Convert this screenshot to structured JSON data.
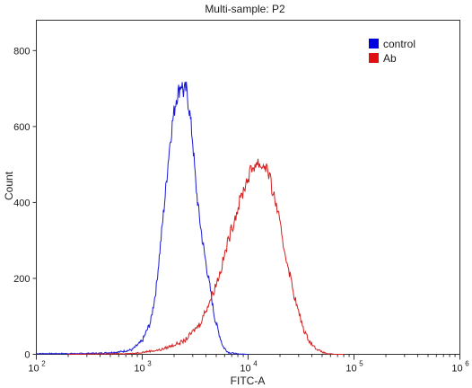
{
  "chart_data": {
    "type": "line",
    "title": "Multi-sample: P2",
    "xlabel": "FITC-A",
    "ylabel": "Count",
    "x_scale": "log",
    "xlim": [
      100,
      1000000
    ],
    "ylim": [
      0,
      880
    ],
    "x_tick_bases": [
      "10",
      "10",
      "10",
      "10",
      "10"
    ],
    "x_tick_exponents": [
      "2",
      "3",
      "4",
      "5",
      "6"
    ],
    "x_tick_values": [
      100,
      1000,
      10000,
      100000,
      1000000
    ],
    "y_ticks": [
      0,
      200,
      400,
      600,
      800
    ],
    "y_tick_labels": [
      "0",
      "200",
      "400",
      "600",
      "800"
    ],
    "grid": false,
    "legend_position": "top-right",
    "series": [
      {
        "name": "control",
        "color": "#1a1ad6",
        "legend_color": "#0000e0",
        "x": [
          100,
          250,
          400,
          600,
          800,
          1000,
          1200,
          1350,
          1500,
          1650,
          1800,
          1950,
          2100,
          2250,
          2350,
          2450,
          2600,
          2800,
          3000,
          3200,
          3400,
          3700,
          4000,
          4400,
          4800,
          5300,
          5800,
          6500,
          8000,
          10000
        ],
        "y": [
          2,
          2,
          3,
          6,
          12,
          35,
          85,
          170,
          300,
          420,
          540,
          620,
          675,
          700,
          715,
          690,
          700,
          640,
          560,
          450,
          380,
          300,
          240,
          170,
          100,
          55,
          20,
          5,
          1,
          0
        ]
      },
      {
        "name": "Ab",
        "color": "#d21e1e",
        "legend_color": "#e01010",
        "x": [
          200,
          800,
          1500,
          2500,
          3500,
          4500,
          5500,
          6500,
          7500,
          8500,
          9500,
          10500,
          11500,
          12500,
          13500,
          14500,
          15500,
          17000,
          19000,
          21000,
          24000,
          27000,
          30000,
          34000,
          38000,
          42000,
          48000,
          55000,
          65000,
          80000
        ],
        "y": [
          0,
          2,
          12,
          35,
          80,
          150,
          220,
          300,
          360,
          410,
          450,
          480,
          500,
          505,
          495,
          500,
          480,
          430,
          380,
          300,
          230,
          160,
          110,
          60,
          35,
          20,
          8,
          2,
          0,
          0
        ]
      }
    ]
  }
}
